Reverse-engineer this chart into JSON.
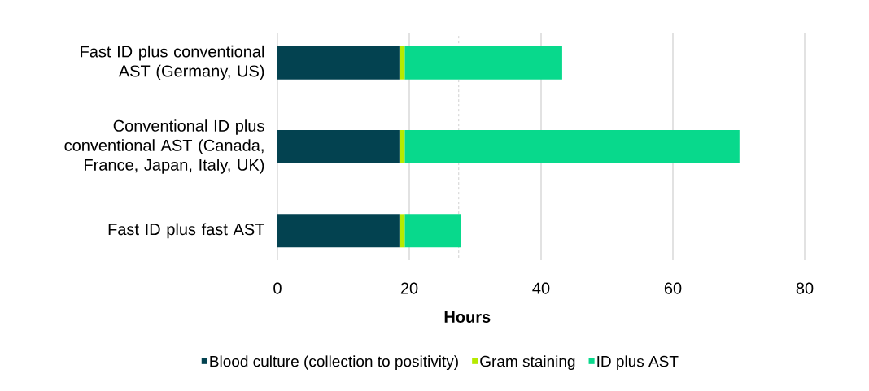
{
  "chart_data": {
    "type": "bar",
    "orientation": "horizontal",
    "stacked": true,
    "xlabel": "Hours",
    "categories": [
      "Fast ID plus conventional AST (Germany, US)",
      "Conventional ID plus conventional AST (Canada, France, Japan, Italy, UK)",
      "Fast ID plus fast AST"
    ],
    "series": [
      {
        "name": "Blood culture (collection to positivity)",
        "color": "#034250",
        "values": [
          18.5,
          18.5,
          18.5
        ]
      },
      {
        "name": "Gram staining",
        "color": "#b6ea00",
        "values": [
          0.8,
          0.8,
          0.8
        ]
      },
      {
        "name": "ID plus AST",
        "color": "#08d98c",
        "values": [
          23.9,
          50.8,
          8.5
        ]
      }
    ],
    "xlim": [
      0,
      80
    ],
    "xticks": [
      0,
      20,
      40,
      60,
      80
    ],
    "grid": "x",
    "legend": "bottom",
    "ref_lines": [
      {
        "axis": "x",
        "value": 27.5,
        "color": "#d0d0d0",
        "line_style": "dashed"
      }
    ]
  }
}
